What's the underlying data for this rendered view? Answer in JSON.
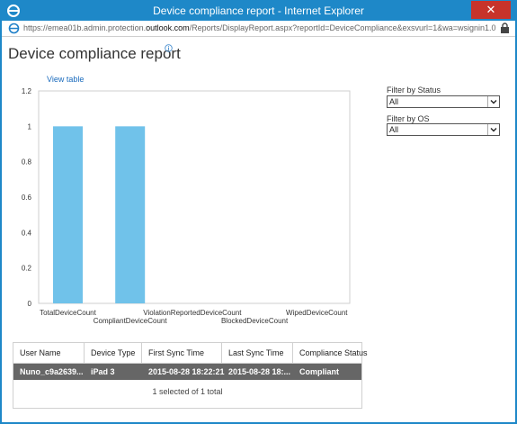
{
  "window": {
    "title": "Device compliance report - Internet Explorer",
    "close_label": "✕"
  },
  "address": {
    "url_prefix": "https://emea01b.admin.protection.",
    "url_host_bold": "outlook.com",
    "url_suffix": "/Reports/DisplayReport.aspx?reportId=DeviceCompliance&exsvurl=1&wa=wsignin1.0"
  },
  "page": {
    "title": "Device compliance report",
    "view_table_link": "View table"
  },
  "filters": {
    "status_label": "Filter by Status",
    "status_value": "All",
    "os_label": "Filter by OS",
    "os_value": "All"
  },
  "chart_data": {
    "type": "bar",
    "categories": [
      "TotalDeviceCount",
      "CompliantDeviceCount",
      "ViolationReportedDeviceCount",
      "BlockedDeviceCount",
      "WipedDeviceCount"
    ],
    "values": [
      1,
      1,
      0,
      0,
      0
    ],
    "ylim": [
      0,
      1.2
    ],
    "yticks": [
      "0",
      "0.2",
      "0.4",
      "0.6",
      "0.8",
      "1",
      "1.2"
    ],
    "ytick_values": [
      0,
      0.2,
      0.4,
      0.6,
      0.8,
      1,
      1.2
    ],
    "bar_color": "#70c2ea",
    "grid": false
  },
  "table": {
    "columns": [
      "User Name",
      "Device Type",
      "First Sync Time",
      "Last Sync Time",
      "Compliance Status"
    ],
    "rows": [
      [
        "Nuno_c9a2639...",
        "iPad 3",
        "2015-08-28 18:22:21",
        "2015-08-28 18:...",
        "Compliant"
      ]
    ],
    "footer": "1 selected of 1 total"
  },
  "colors": {
    "titlebar": "#1e88c8",
    "selected_row": "#666666",
    "link": "#1a6bbd"
  }
}
